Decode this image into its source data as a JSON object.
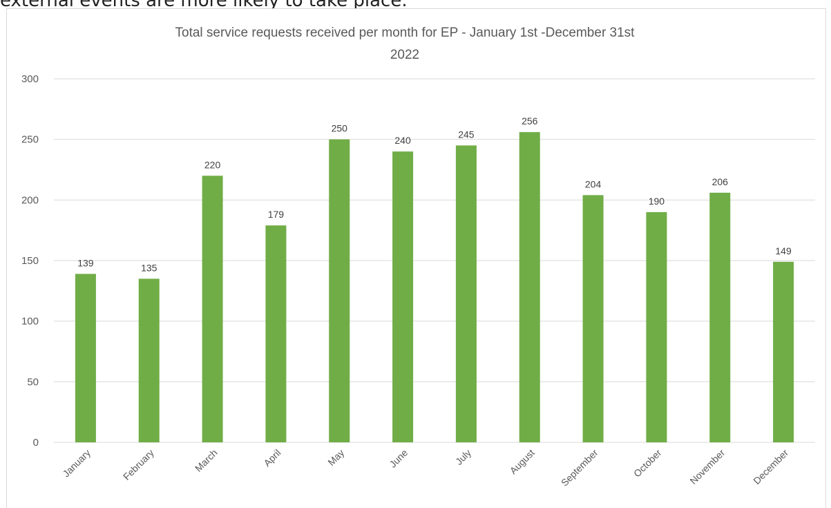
{
  "intro_text": "external events are more likely to take place.",
  "colors": {
    "bar": "#70ad47",
    "gridline": "#d9d9d9",
    "text": "#595959"
  },
  "chart_data": {
    "type": "bar",
    "title_line1": "Total service requests received per month for EP - January 1st -December  31st",
    "title_line2": "2022",
    "categories": [
      "January",
      "February",
      "March",
      "April",
      "May",
      "June",
      "July",
      "August",
      "September",
      "October",
      "November",
      "December"
    ],
    "values": [
      139,
      135,
      220,
      179,
      250,
      240,
      245,
      256,
      204,
      190,
      206,
      149
    ],
    "ylim": [
      0,
      300
    ],
    "yticks": [
      "0",
      "50",
      "100",
      "150",
      "200",
      "250",
      "300"
    ],
    "xlabel": "",
    "ylabel": "",
    "grid": true,
    "legend": "none",
    "data_labels": true
  }
}
